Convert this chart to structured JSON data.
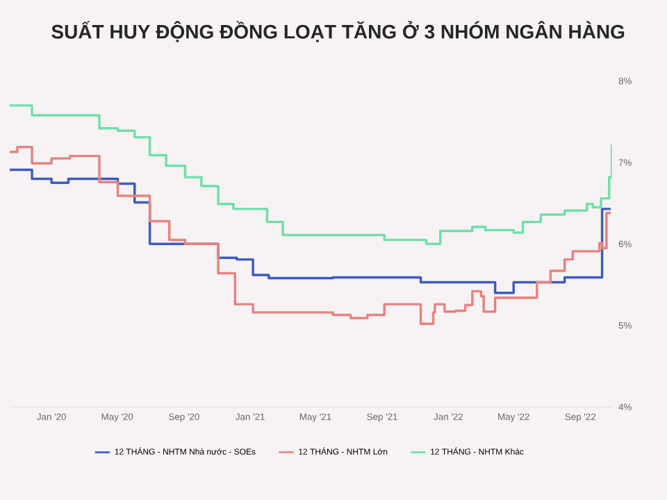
{
  "chart_data": {
    "type": "step",
    "title": "SUẤT HUY ĐỘNG ĐỒNG LOẠT TĂNG Ở 3 NHÓM NGÂN HÀNG",
    "xlim": [
      "2019-10-16",
      "2022-10-29"
    ],
    "xticks": [
      {
        "value": "2020-01-01",
        "label": "Jan '20"
      },
      {
        "value": "2020-05-01",
        "label": "May '20"
      },
      {
        "value": "2020-09-01",
        "label": "Sep '20"
      },
      {
        "value": "2021-01-01",
        "label": "Jan '21"
      },
      {
        "value": "2021-05-01",
        "label": "May '21"
      },
      {
        "value": "2021-09-01",
        "label": "Sep '21"
      },
      {
        "value": "2022-01-01",
        "label": "Jan '22"
      },
      {
        "value": "2022-05-01",
        "label": "May '22"
      },
      {
        "value": "2022-09-01",
        "label": "Sep '22"
      }
    ],
    "ylim": [
      4,
      8
    ],
    "yticks": [
      {
        "value": 4,
        "label": "4%"
      },
      {
        "value": 5,
        "label": "5%"
      },
      {
        "value": 6,
        "label": "6%"
      },
      {
        "value": 7,
        "label": "7%"
      },
      {
        "value": 8,
        "label": "8%"
      }
    ],
    "grid": false,
    "legend": "bottom",
    "series": [
      {
        "name": "12 THÁNG - NHTM Nhà nước - SOEs",
        "color": "#3d5bbf",
        "x": [
          "2019-10-16",
          "2019-11-26",
          "2020-01-01",
          "2020-02-01",
          "2020-05-02",
          "2020-06-02",
          "2020-06-30",
          "2020-11-03",
          "2020-12-07",
          "2021-01-06",
          "2021-02-04",
          "2021-06-02",
          "2021-11-11",
          "2022-03-28",
          "2022-05-01",
          "2022-08-03",
          "2022-10-11",
          "2022-10-27"
        ],
        "values": [
          6.91,
          6.8,
          6.75,
          6.8,
          6.74,
          6.51,
          6.0,
          5.83,
          5.81,
          5.62,
          5.58,
          5.59,
          5.53,
          5.4,
          5.53,
          5.59,
          6.43,
          6.43
        ]
      },
      {
        "name": "12 THÁNG - NHTM Lớn",
        "color": "#e8827f",
        "x": [
          "2019-10-16",
          "2019-10-30",
          "2019-11-26",
          "2020-01-01",
          "2020-02-04",
          "2020-03-29",
          "2020-05-02",
          "2020-06-30",
          "2020-08-05",
          "2020-09-03",
          "2020-11-03",
          "2020-12-04",
          "2021-01-06",
          "2021-06-02",
          "2021-07-05",
          "2021-08-05",
          "2021-09-05",
          "2021-11-11",
          "2021-12-04",
          "2021-12-07",
          "2021-12-25",
          "2022-01-14",
          "2022-02-01",
          "2022-02-14",
          "2022-03-02",
          "2022-03-07",
          "2022-03-28",
          "2022-06-13",
          "2022-07-08",
          "2022-08-03",
          "2022-08-18",
          "2022-10-06",
          "2022-10-11",
          "2022-10-19",
          "2022-10-27"
        ],
        "values": [
          7.13,
          7.19,
          6.99,
          7.05,
          7.08,
          6.76,
          6.59,
          6.28,
          6.05,
          6.0,
          5.64,
          5.26,
          5.16,
          5.13,
          5.09,
          5.13,
          5.26,
          5.02,
          5.16,
          5.26,
          5.17,
          5.18,
          5.25,
          5.42,
          5.36,
          5.17,
          5.34,
          5.53,
          5.67,
          5.81,
          5.91,
          6.01,
          5.95,
          6.38,
          6.38
        ]
      },
      {
        "name": "12 THÁNG - NHTM Khác",
        "color": "#6fe0a8",
        "x": [
          "2019-10-16",
          "2019-11-26",
          "2020-03-29",
          "2020-05-02",
          "2020-06-02",
          "2020-06-30",
          "2020-07-30",
          "2020-09-03",
          "2020-10-03",
          "2020-11-03",
          "2020-12-01",
          "2021-02-01",
          "2021-03-02",
          "2021-09-05",
          "2021-11-21",
          "2021-12-17",
          "2022-02-14",
          "2022-03-10",
          "2022-05-01",
          "2022-05-18",
          "2022-06-20",
          "2022-08-03",
          "2022-09-13",
          "2022-09-24",
          "2022-10-09",
          "2022-10-24",
          "2022-10-29"
        ],
        "values": [
          7.7,
          7.58,
          7.42,
          7.39,
          7.31,
          7.09,
          6.96,
          6.82,
          6.71,
          6.49,
          6.43,
          6.27,
          6.11,
          6.05,
          6.0,
          6.16,
          6.21,
          6.17,
          6.14,
          6.27,
          6.36,
          6.41,
          6.49,
          6.45,
          6.56,
          6.82,
          7.22
        ]
      }
    ]
  }
}
